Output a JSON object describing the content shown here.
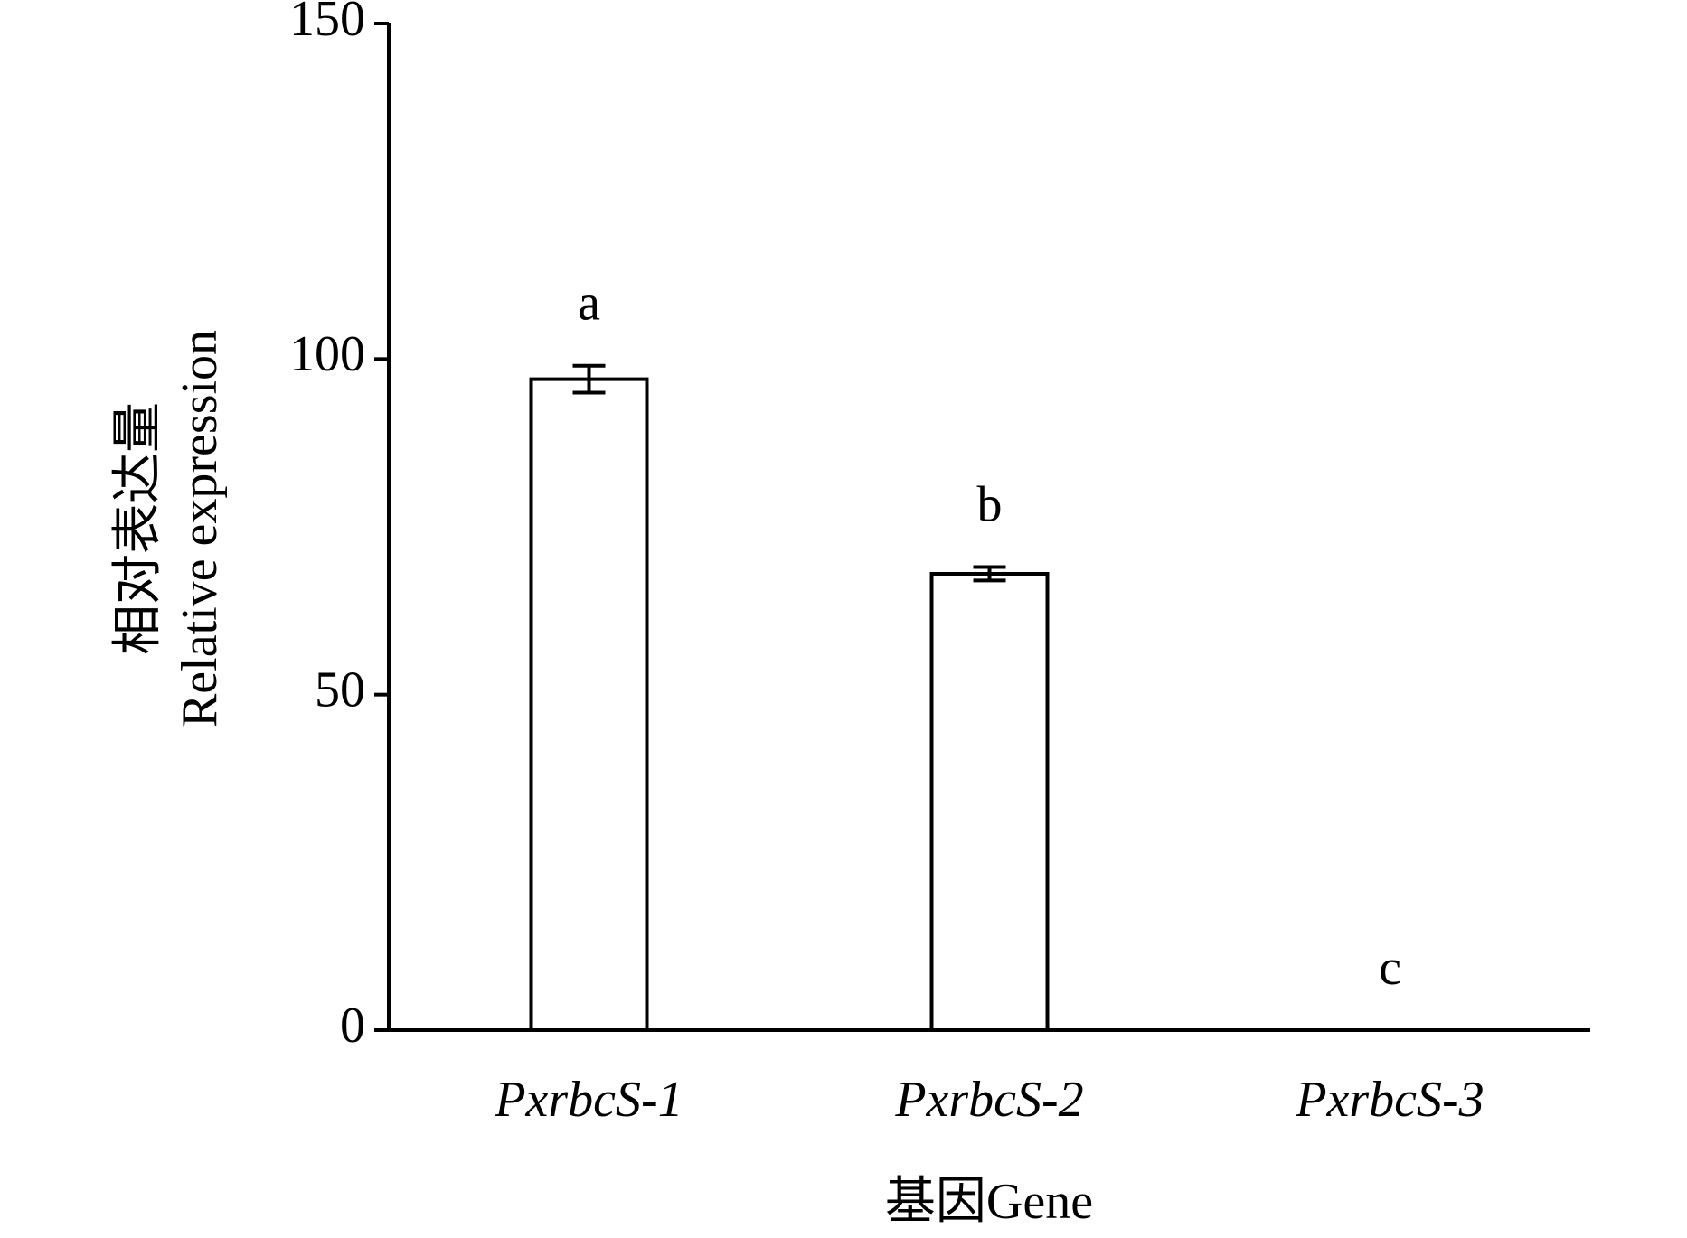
{
  "chart_data": {
    "type": "bar",
    "xlabel": "基因Gene",
    "ylabel": [
      "相对表达量",
      "Relative expression"
    ],
    "categories": [
      "PxrbcS-1",
      "PxrbcS-2",
      "PxrbcS-3"
    ],
    "values": [
      97,
      68,
      0
    ],
    "errors": [
      2,
      1,
      0
    ],
    "letters": [
      "a",
      "b",
      "c"
    ],
    "color": "#ffffff",
    "ylim": [
      0,
      150
    ],
    "yticks": [
      0,
      50,
      100,
      150
    ],
    "grid": false
  }
}
